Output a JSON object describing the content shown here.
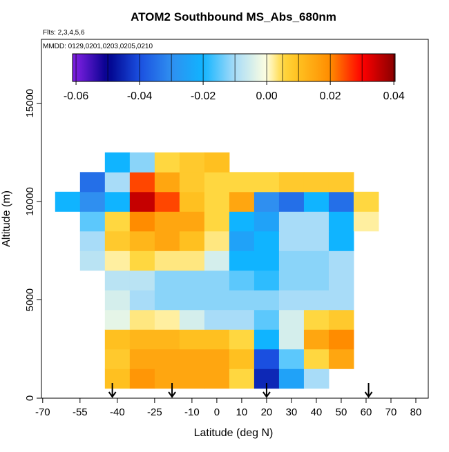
{
  "chart_data": {
    "type": "heatmap",
    "title": "ATOM2 Southbound MS_Abs_680nm",
    "subtitle": "Flts: 2,3,4,5,6",
    "annotation": "MMDD: 0129,0201,0203,0205,0210",
    "x_label": "Latitude (deg N)",
    "y_label": "Altitude (m)",
    "x": [
      -60,
      -50,
      -40,
      -30,
      -20,
      -10,
      0,
      10,
      20,
      30,
      40,
      50,
      60
    ],
    "y": [
      1000,
      2000,
      3000,
      4000,
      5000,
      6000,
      7000,
      8000,
      9000,
      10000,
      11000,
      12000
    ],
    "values": [
      [
        null,
        null,
        0.01,
        0.018,
        0.015,
        0.015,
        0.015,
        0.005,
        -0.045,
        -0.025,
        -0.01,
        null,
        null
      ],
      [
        null,
        null,
        0.008,
        0.015,
        0.015,
        0.015,
        0.015,
        0.01,
        -0.04,
        -0.015,
        0.005,
        0.015,
        null
      ],
      [
        null,
        null,
        0.01,
        0.012,
        0.012,
        0.01,
        0.01,
        0.005,
        -0.02,
        -0.005,
        0.015,
        0.02,
        null
      ],
      [
        null,
        null,
        -0.003,
        0.003,
        0.002,
        -0.005,
        -0.01,
        -0.01,
        -0.015,
        -0.005,
        0.005,
        0.008,
        null
      ],
      [
        null,
        null,
        -0.005,
        -0.01,
        -0.012,
        -0.012,
        -0.012,
        -0.012,
        -0.012,
        -0.01,
        -0.01,
        -0.01,
        null
      ],
      [
        null,
        null,
        -0.008,
        -0.008,
        -0.012,
        -0.012,
        -0.012,
        -0.015,
        -0.018,
        -0.012,
        -0.012,
        -0.01,
        null
      ],
      [
        null,
        -0.008,
        0.002,
        0.005,
        0.003,
        0.003,
        -0.005,
        -0.02,
        -0.02,
        -0.012,
        -0.012,
        -0.01,
        null
      ],
      [
        null,
        -0.01,
        0.008,
        0.012,
        0.015,
        0.01,
        0.003,
        -0.025,
        -0.02,
        -0.01,
        -0.01,
        -0.02,
        null
      ],
      [
        null,
        -0.015,
        0.005,
        0.02,
        0.015,
        0.015,
        0.005,
        -0.02,
        -0.025,
        -0.01,
        -0.01,
        -0.02,
        0.002
      ],
      [
        -0.02,
        -0.03,
        -0.02,
        0.035,
        0.025,
        0.01,
        0.005,
        0.015,
        -0.03,
        -0.035,
        -0.02,
        -0.035,
        0.005
      ],
      [
        null,
        -0.035,
        -0.01,
        0.025,
        0.015,
        0.008,
        0.005,
        0.005,
        0.005,
        0.008,
        0.008,
        0.008,
        null
      ],
      [
        null,
        null,
        -0.02,
        -0.012,
        0.005,
        0.008,
        0.01,
        null,
        null,
        null,
        null,
        null,
        null
      ]
    ],
    "xlim": [
      -70.5,
      85
    ],
    "ylim": [
      0,
      18250
    ],
    "xticks": [
      -70,
      -55,
      -40,
      -25,
      -10,
      0,
      10,
      20,
      30,
      40,
      50,
      60,
      70,
      80
    ],
    "yticks": [
      0,
      5000,
      10000,
      15000
    ],
    "colorbar_lim": [
      -0.0611,
      0.0404
    ],
    "colorbar_ticks": [
      -0.06,
      -0.04,
      -0.02,
      {
        "value": 0,
        "label": "0.00"
      },
      0.02,
      0.04
    ],
    "colorscale": [
      [
        -0.06,
        "#7b1fe0"
      ],
      [
        -0.05,
        "#00008b"
      ],
      [
        -0.04,
        "#1a4fe0"
      ],
      [
        -0.03,
        "#2f8ff0"
      ],
      [
        -0.02,
        "#10b4ff"
      ],
      [
        -0.01,
        "#a8dcf8"
      ],
      [
        0,
        "#ffffe0"
      ],
      [
        0.005,
        "#ffd740"
      ],
      [
        0.01,
        "#ffc020"
      ],
      [
        0.02,
        "#ff8c00"
      ],
      [
        0.03,
        "#ff0000"
      ],
      [
        0.04,
        "#8b0000"
      ]
    ],
    "markers_lat": [
      -42,
      -18,
      20,
      61
    ]
  }
}
